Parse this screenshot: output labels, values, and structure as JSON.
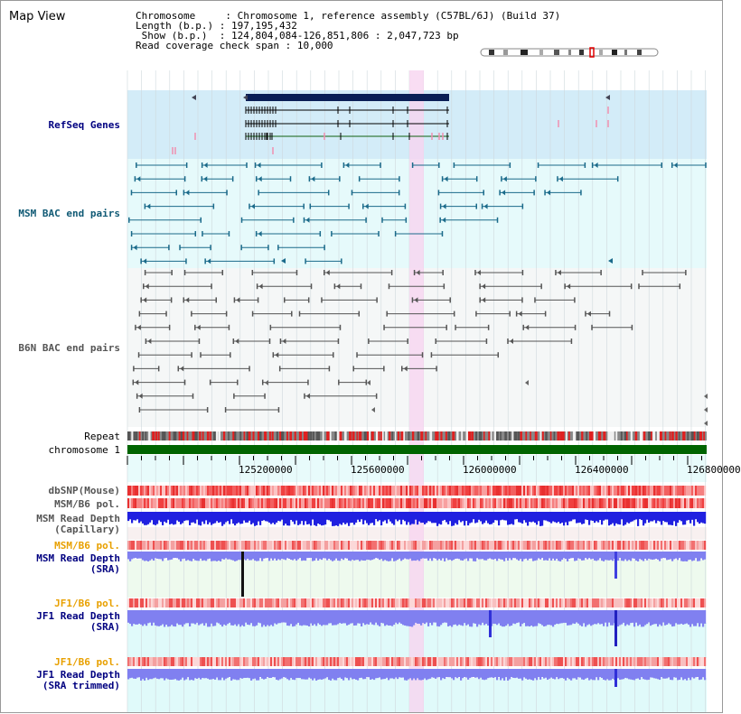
{
  "header": {
    "title": "Map View",
    "info_rows": [
      {
        "key": "Chromosome     ",
        "value": ": Chromosome 1, reference assembly (C57BL/6J) (Build 37)"
      },
      {
        "key": "Length (b.p.) ",
        "value": ": 197,195,432"
      },
      {
        "key": " Show (b.p.)  ",
        "value": ": 124,804,084-126,851,806 : 2,047,723 bp"
      },
      {
        "key": "Read coverage check span ",
        "value": ": 10,000"
      }
    ]
  },
  "tracks": {
    "refseq": "RefSeq Genes",
    "msm_bac": "MSM BAC end pairs",
    "b6n_bac": "B6N BAC end pairs",
    "repeat": "Repeat",
    "chromosome": "chromosome 1",
    "dbsnp": "dbSNP(Mouse)",
    "msm_b6_pol": "MSM/B6 pol.",
    "msm_depth_cap_1": "MSM Read Depth",
    "msm_depth_cap_2": "(Capillary)",
    "msm_b6_pol_2": "MSM/B6 pol.",
    "msm_depth_sra_1": "MSM Read Depth",
    "msm_depth_sra_2": "(SRA)",
    "jf1_b6_pol": "JF1/B6 pol.",
    "jf1_depth_sra_1": "JF1 Read Depth",
    "jf1_depth_sra_2": "(SRA)",
    "jf1_b6_pol_2": "JF1/B6 pol.",
    "jf1_depth_trim_1": "JF1 Read Depth",
    "jf1_depth_trim_2": "(SRA trimmed)"
  },
  "axis": {
    "ticks": [
      "125200000",
      "125600000",
      "126000000",
      "126400000",
      "126800000"
    ]
  },
  "colors": {
    "refseq_bg": "#d3ecf8",
    "msm_bg": "#e6fafb",
    "b6n_bg": "#f5f7f7",
    "highlight": "#f8d4f0",
    "chromosome": "#006400",
    "depth_capillary": "#2020e0",
    "depth_sra": "#8080f0"
  }
}
